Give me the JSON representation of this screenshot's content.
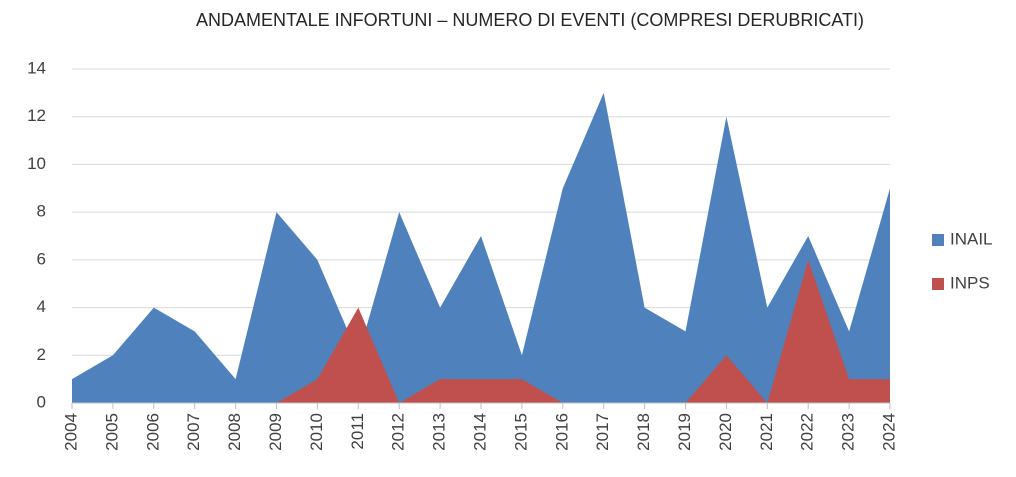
{
  "chart_data": {
    "type": "area",
    "title": "ANDAMENTALE INFORTUNI – NUMERO DI EVENTI (COMPRESI DERUBRICATI)",
    "categories": [
      "2004",
      "2005",
      "2006",
      "2007",
      "2008",
      "2009",
      "2010",
      "2011",
      "2012",
      "2013",
      "2014",
      "2015",
      "2016",
      "2017",
      "2018",
      "2019",
      "2020",
      "2021",
      "2022",
      "2023",
      "2024"
    ],
    "series": [
      {
        "name": "INAIL",
        "color": "#4f81bd",
        "values": [
          1,
          2,
          4,
          3,
          1,
          8,
          6,
          2,
          8,
          4,
          7,
          2,
          9,
          13,
          4,
          3,
          12,
          4,
          7,
          3,
          9
        ]
      },
      {
        "name": "INPS",
        "color": "#c0504d",
        "values": [
          0,
          0,
          0,
          0,
          0,
          0,
          1,
          4,
          0,
          1,
          1,
          1,
          0,
          0,
          0,
          0,
          2,
          0,
          6,
          1,
          1
        ]
      }
    ],
    "ylim": [
      0,
      14
    ],
    "yticks": [
      0,
      2,
      4,
      6,
      8,
      10,
      12,
      14
    ],
    "grid": true,
    "legend": "right"
  }
}
